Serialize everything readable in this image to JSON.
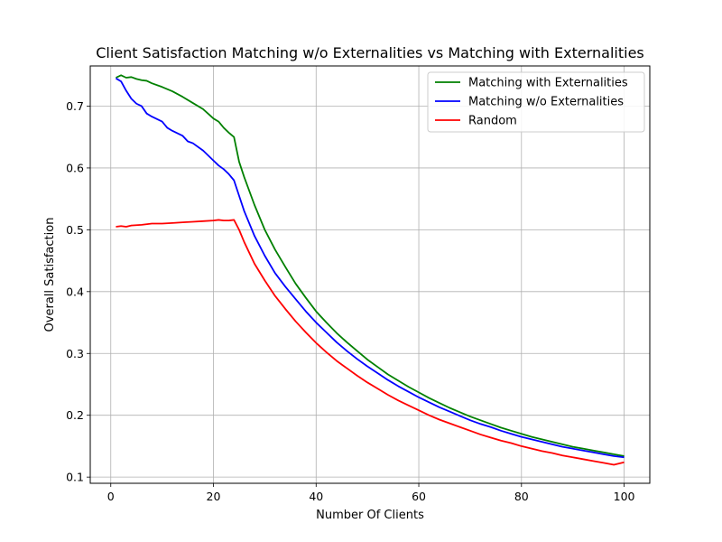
{
  "chart_data": {
    "type": "line",
    "title": "Client Satisfaction Matching w/o Externalities vs Matching with Externalities",
    "xlabel": "Number Of Clients",
    "ylabel": "Overall Satisfaction",
    "xlim": [
      -4,
      105
    ],
    "ylim": [
      0.09,
      0.765
    ],
    "xticks": [
      0,
      20,
      40,
      60,
      80,
      100
    ],
    "yticks": [
      0.1,
      0.2,
      0.3,
      0.4,
      0.5,
      0.6,
      0.7
    ],
    "xtick_labels": [
      "0",
      "20",
      "40",
      "60",
      "80",
      "100"
    ],
    "ytick_labels": [
      "0.1",
      "0.2",
      "0.3",
      "0.4",
      "0.5",
      "0.6",
      "0.7"
    ],
    "grid": true,
    "legend_position": "top-right",
    "series": [
      {
        "name": "Matching with Externalities",
        "color": "#008000",
        "x": [
          1,
          2,
          3,
          4,
          5,
          6,
          7,
          8,
          10,
          12,
          14,
          16,
          18,
          20,
          21,
          22,
          23,
          24,
          25,
          26,
          28,
          30,
          32,
          34,
          36,
          38,
          40,
          42,
          44,
          46,
          48,
          50,
          52,
          54,
          56,
          58,
          60,
          62,
          64,
          66,
          68,
          70,
          72,
          74,
          76,
          78,
          80,
          82,
          84,
          86,
          88,
          90,
          92,
          94,
          96,
          98,
          100
        ],
        "y": [
          0.746,
          0.75,
          0.746,
          0.747,
          0.744,
          0.742,
          0.741,
          0.737,
          0.731,
          0.724,
          0.715,
          0.705,
          0.695,
          0.68,
          0.675,
          0.665,
          0.657,
          0.65,
          0.61,
          0.585,
          0.54,
          0.5,
          0.468,
          0.44,
          0.413,
          0.39,
          0.368,
          0.35,
          0.333,
          0.318,
          0.304,
          0.29,
          0.278,
          0.266,
          0.256,
          0.246,
          0.237,
          0.228,
          0.22,
          0.212,
          0.205,
          0.198,
          0.192,
          0.186,
          0.18,
          0.175,
          0.17,
          0.165,
          0.161,
          0.157,
          0.153,
          0.149,
          0.146,
          0.143,
          0.14,
          0.137,
          0.134
        ]
      },
      {
        "name": "Matching w/o Externalities",
        "color": "#0000ff",
        "x": [
          1,
          2,
          3,
          4,
          5,
          6,
          7,
          8,
          10,
          11,
          12,
          14,
          15,
          16,
          18,
          20,
          21,
          22,
          23,
          24,
          25,
          26,
          28,
          30,
          32,
          34,
          36,
          38,
          40,
          42,
          44,
          46,
          48,
          50,
          52,
          54,
          56,
          58,
          60,
          62,
          64,
          66,
          68,
          70,
          72,
          74,
          76,
          78,
          80,
          82,
          84,
          86,
          88,
          90,
          92,
          94,
          96,
          98,
          100
        ],
        "y": [
          0.745,
          0.74,
          0.725,
          0.712,
          0.704,
          0.7,
          0.688,
          0.683,
          0.675,
          0.665,
          0.66,
          0.652,
          0.643,
          0.64,
          0.628,
          0.612,
          0.604,
          0.598,
          0.59,
          0.58,
          0.555,
          0.53,
          0.49,
          0.458,
          0.43,
          0.408,
          0.388,
          0.368,
          0.35,
          0.334,
          0.318,
          0.304,
          0.291,
          0.279,
          0.268,
          0.257,
          0.247,
          0.238,
          0.229,
          0.221,
          0.213,
          0.206,
          0.199,
          0.192,
          0.186,
          0.181,
          0.175,
          0.17,
          0.165,
          0.161,
          0.157,
          0.153,
          0.149,
          0.146,
          0.143,
          0.14,
          0.137,
          0.134,
          0.132
        ]
      },
      {
        "name": "Random",
        "color": "#ff0000",
        "x": [
          1,
          2,
          3,
          4,
          6,
          8,
          10,
          12,
          14,
          16,
          18,
          20,
          21,
          22,
          23,
          24,
          25,
          26,
          28,
          30,
          32,
          34,
          36,
          38,
          40,
          42,
          44,
          46,
          48,
          50,
          52,
          54,
          56,
          58,
          60,
          62,
          64,
          66,
          68,
          70,
          72,
          74,
          76,
          78,
          80,
          82,
          84,
          86,
          88,
          90,
          92,
          94,
          96,
          98,
          100
        ],
        "y": [
          0.505,
          0.506,
          0.505,
          0.507,
          0.508,
          0.51,
          0.51,
          0.511,
          0.512,
          0.513,
          0.514,
          0.515,
          0.516,
          0.515,
          0.515,
          0.516,
          0.5,
          0.48,
          0.445,
          0.418,
          0.393,
          0.372,
          0.352,
          0.334,
          0.317,
          0.302,
          0.288,
          0.276,
          0.264,
          0.253,
          0.243,
          0.233,
          0.224,
          0.216,
          0.208,
          0.2,
          0.193,
          0.187,
          0.181,
          0.175,
          0.169,
          0.164,
          0.159,
          0.155,
          0.15,
          0.146,
          0.142,
          0.139,
          0.135,
          0.132,
          0.129,
          0.126,
          0.123,
          0.12,
          0.124
        ]
      }
    ]
  }
}
